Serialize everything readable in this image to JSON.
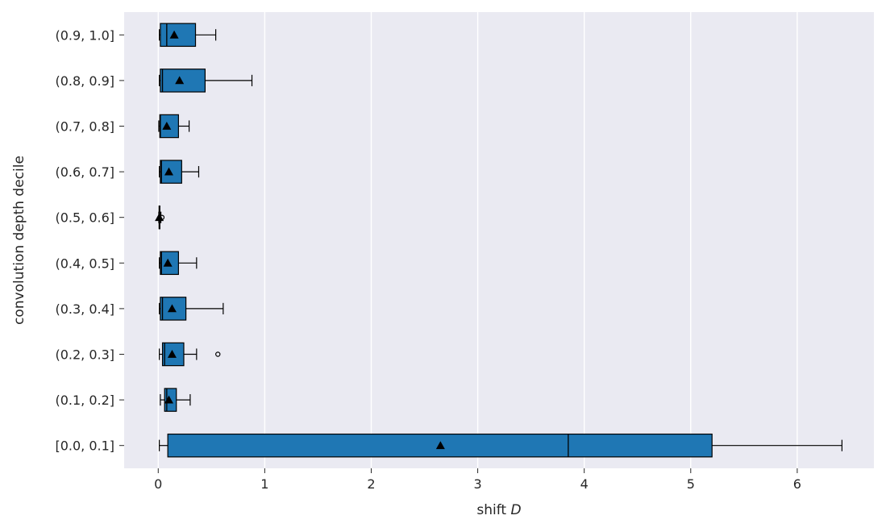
{
  "chart_data": {
    "type": "boxplot",
    "orientation": "horizontal",
    "xlabel_text": "shift ",
    "xlabel_var": "D",
    "ylabel": "convolution depth decile",
    "xlim": [
      -0.32,
      6.72
    ],
    "xticks": [
      0,
      1,
      2,
      3,
      4,
      5,
      6
    ],
    "grid": true,
    "box_color": "#1f77b4",
    "background_color": "#eaeaf2",
    "categories": [
      "[0.0, 0.1]",
      "(0.1, 0.2]",
      "(0.2, 0.3]",
      "(0.3, 0.4]",
      "(0.4, 0.5]",
      "(0.5, 0.6]",
      "(0.6, 0.7]",
      "(0.7, 0.8]",
      "(0.8, 0.9]",
      "(0.9, 1.0]"
    ],
    "boxes": [
      {
        "whisker_low": 0.01,
        "q1": 0.09,
        "median": 3.85,
        "q3": 5.2,
        "whisker_high": 6.42,
        "mean": 2.65,
        "outliers": []
      },
      {
        "whisker_low": 0.02,
        "q1": 0.06,
        "median": 0.08,
        "q3": 0.17,
        "whisker_high": 0.3,
        "mean": 0.1,
        "outliers": []
      },
      {
        "whisker_low": 0.01,
        "q1": 0.04,
        "median": 0.06,
        "q3": 0.24,
        "whisker_high": 0.36,
        "mean": 0.13,
        "outliers": [
          0.56
        ]
      },
      {
        "whisker_low": 0.01,
        "q1": 0.02,
        "median": 0.04,
        "q3": 0.26,
        "whisker_high": 0.61,
        "mean": 0.13,
        "outliers": []
      },
      {
        "whisker_low": 0.01,
        "q1": 0.02,
        "median": 0.03,
        "q3": 0.19,
        "whisker_high": 0.36,
        "mean": 0.09,
        "outliers": []
      },
      {
        "whisker_low": 0.005,
        "q1": 0.008,
        "median": 0.01,
        "q3": 0.015,
        "whisker_high": 0.025,
        "mean": 0.01,
        "outliers": [
          0.035
        ]
      },
      {
        "whisker_low": 0.01,
        "q1": 0.02,
        "median": 0.03,
        "q3": 0.22,
        "whisker_high": 0.38,
        "mean": 0.1,
        "outliers": []
      },
      {
        "whisker_low": 0.005,
        "q1": 0.015,
        "median": 0.02,
        "q3": 0.19,
        "whisker_high": 0.29,
        "mean": 0.08,
        "outliers": []
      },
      {
        "whisker_low": 0.01,
        "q1": 0.02,
        "median": 0.04,
        "q3": 0.44,
        "whisker_high": 0.88,
        "mean": 0.2,
        "outliers": []
      },
      {
        "whisker_low": 0.01,
        "q1": 0.02,
        "median": 0.08,
        "q3": 0.35,
        "whisker_high": 0.54,
        "mean": 0.15,
        "outliers": []
      }
    ]
  }
}
